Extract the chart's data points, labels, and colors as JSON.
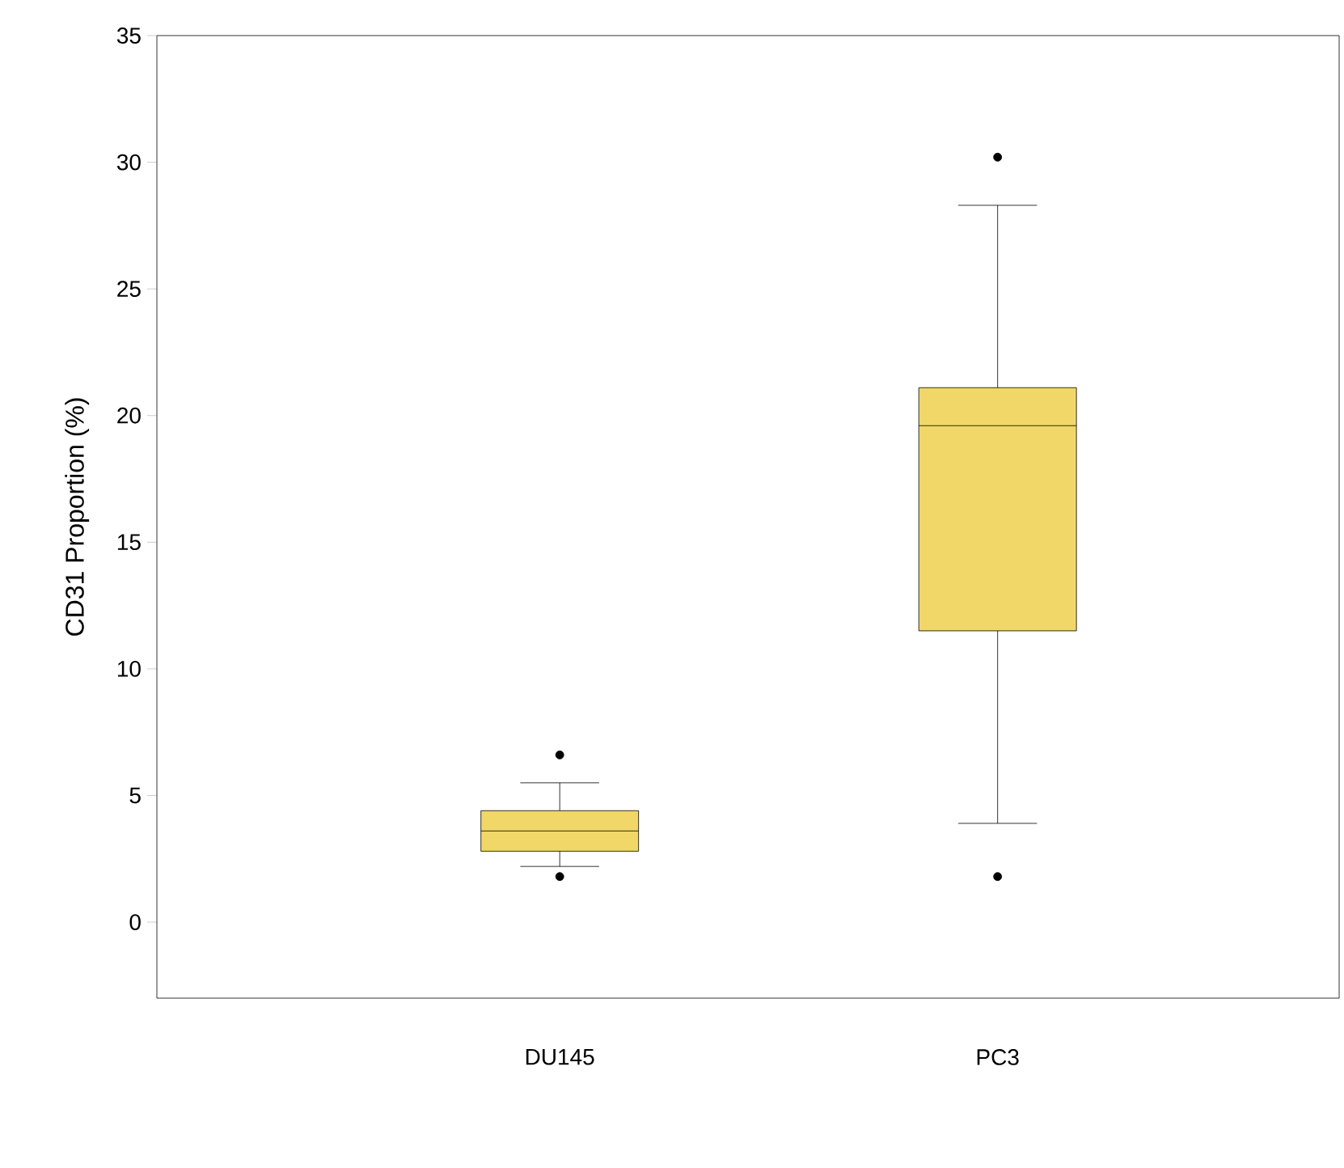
{
  "chart_data": {
    "type": "box",
    "ylabel": "CD31 Proportion (%)",
    "categories": [
      "DU145",
      "PC3"
    ],
    "color": "#f0d768",
    "boxes": [
      {
        "low": 2.2,
        "q1": 2.8,
        "median": 3.6,
        "q3": 4.4,
        "high": 5.5,
        "outliers": [
          6.6,
          1.8
        ]
      },
      {
        "low": 3.9,
        "q1": 11.5,
        "median": 19.6,
        "q3": 21.1,
        "high": 28.3,
        "outliers": [
          30.2,
          1.8
        ]
      }
    ],
    "ylim": [
      -3,
      35
    ],
    "yticks": [
      0,
      5,
      10,
      15,
      20,
      25,
      30,
      35
    ],
    "grid": false
  }
}
